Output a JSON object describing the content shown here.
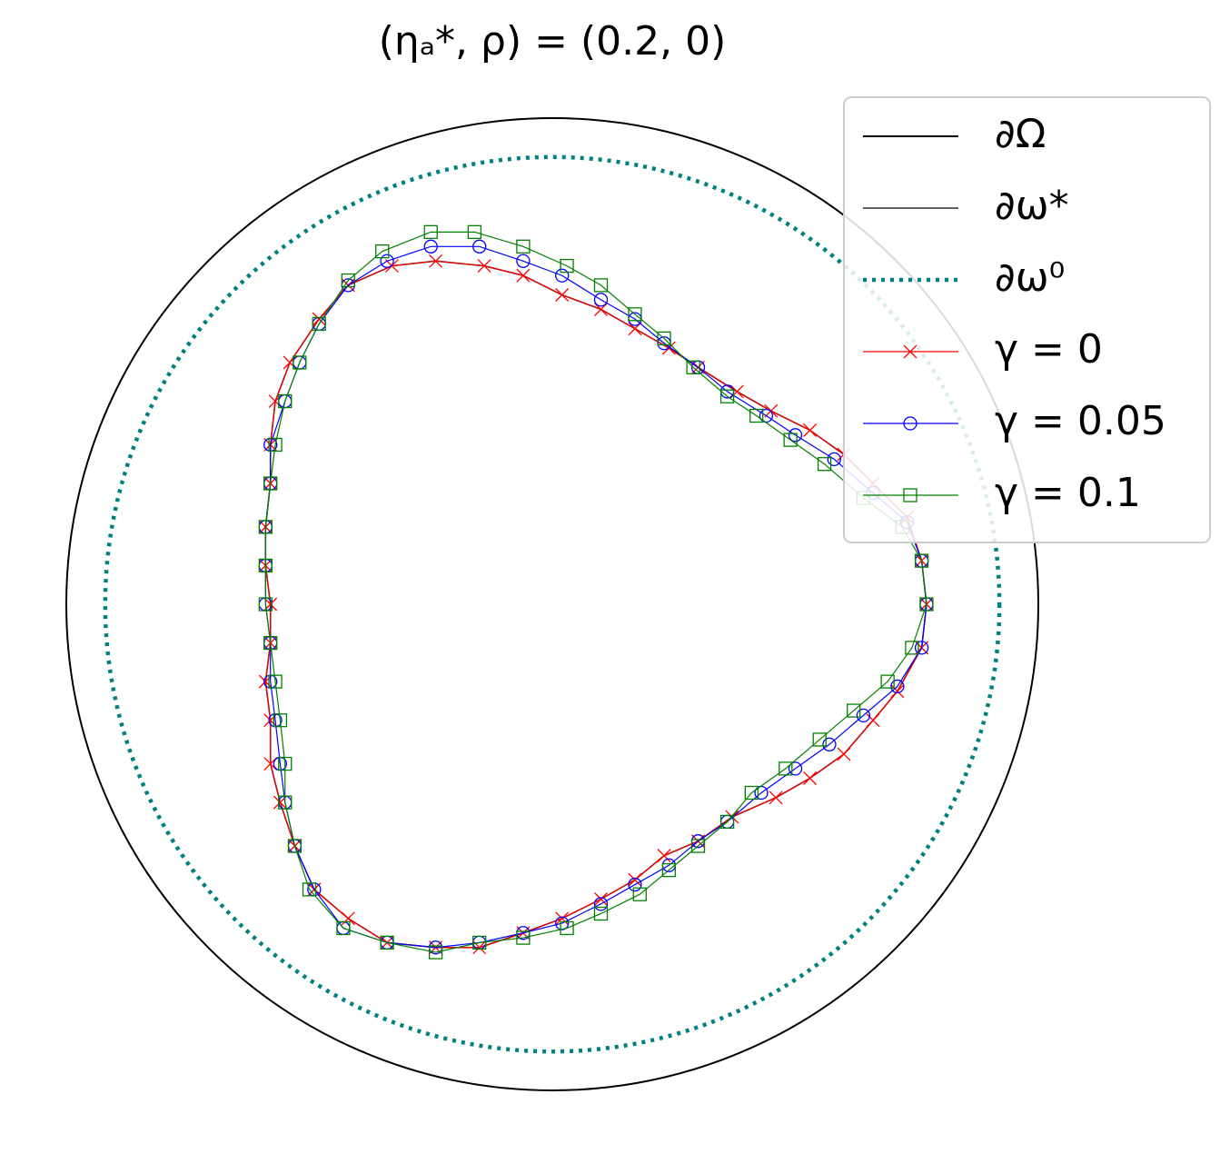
{
  "chart_data": {
    "type": "shape",
    "title": "(ηₐ*, ρ) = (0.2, 0)",
    "xlim": [
      -1,
      1
    ],
    "ylim": [
      -1,
      1
    ],
    "legend": "upper right",
    "series": [
      {
        "name": "∂Ω",
        "color": "#000000",
        "shape": "circle",
        "radius": 1,
        "linestyle": "solid"
      },
      {
        "name": "∂ω*",
        "color": "#000000",
        "shape": "curve",
        "linestyle": "thin",
        "x": [
          0.77,
          0.76,
          0.71,
          0.66,
          0.6,
          0.53,
          0.46,
          0.37,
          0.3,
          0.23,
          0.17,
          0.1,
          0.02,
          -0.06,
          -0.15,
          -0.24,
          -0.34,
          -0.42,
          -0.49,
          -0.53,
          -0.56,
          -0.58,
          -0.58,
          -0.59,
          -0.58,
          -0.58,
          -0.59,
          -0.59,
          -0.58,
          -0.58,
          -0.57,
          -0.54,
          -0.48,
          -0.42,
          -0.33,
          -0.24,
          -0.14,
          -0.06,
          0.02,
          0.1,
          0.17,
          0.24,
          0.3,
          0.38,
          0.45,
          0.53,
          0.6,
          0.66,
          0.73,
          0.76
        ],
        "y": [
          0,
          -0.09,
          -0.18,
          -0.24,
          -0.31,
          -0.36,
          -0.4,
          -0.44,
          -0.49,
          -0.52,
          -0.57,
          -0.61,
          -0.65,
          -0.68,
          -0.71,
          -0.71,
          -0.7,
          -0.65,
          -0.59,
          -0.5,
          -0.41,
          -0.33,
          -0.24,
          -0.16,
          -0.08,
          0,
          0.08,
          0.16,
          0.25,
          0.33,
          0.42,
          0.5,
          0.59,
          0.66,
          0.7,
          0.71,
          0.7,
          0.68,
          0.64,
          0.61,
          0.57,
          0.53,
          0.49,
          0.44,
          0.4,
          0.36,
          0.31,
          0.25,
          0.18,
          0.09
        ]
      },
      {
        "name": "∂ω⁰",
        "color": "#008080",
        "shape": "circle",
        "radius": 0.92,
        "linestyle": "dotted"
      },
      {
        "name": "γ = 0",
        "color": "#ff0000",
        "shape": "curve",
        "marker": "x",
        "x": [
          0.77,
          0.76,
          0.71,
          0.66,
          0.6,
          0.53,
          0.46,
          0.37,
          0.3,
          0.23,
          0.17,
          0.1,
          0.02,
          -0.06,
          -0.15,
          -0.24,
          -0.34,
          -0.42,
          -0.49,
          -0.53,
          -0.56,
          -0.58,
          -0.58,
          -0.59,
          -0.58,
          -0.58,
          -0.59,
          -0.59,
          -0.58,
          -0.58,
          -0.57,
          -0.54,
          -0.48,
          -0.42,
          -0.33,
          -0.24,
          -0.14,
          -0.06,
          0.02,
          0.1,
          0.17,
          0.24,
          0.3,
          0.38,
          0.45,
          0.53,
          0.6,
          0.66,
          0.73,
          0.76
        ],
        "y": [
          0,
          -0.09,
          -0.18,
          -0.24,
          -0.31,
          -0.36,
          -0.4,
          -0.44,
          -0.49,
          -0.52,
          -0.57,
          -0.61,
          -0.65,
          -0.68,
          -0.71,
          -0.71,
          -0.7,
          -0.65,
          -0.59,
          -0.5,
          -0.41,
          -0.33,
          -0.24,
          -0.16,
          -0.08,
          0,
          0.08,
          0.16,
          0.25,
          0.33,
          0.42,
          0.5,
          0.59,
          0.66,
          0.7,
          0.71,
          0.7,
          0.68,
          0.64,
          0.61,
          0.57,
          0.53,
          0.49,
          0.44,
          0.4,
          0.36,
          0.31,
          0.25,
          0.18,
          0.09
        ]
      },
      {
        "name": "γ = 0.05",
        "color": "#0000ff",
        "shape": "curve",
        "marker": "circle",
        "x": [
          0.77,
          0.76,
          0.71,
          0.64,
          0.57,
          0.5,
          0.43,
          0.36,
          0.3,
          0.24,
          0.17,
          0.1,
          0.02,
          -0.06,
          -0.15,
          -0.24,
          -0.34,
          -0.43,
          -0.49,
          -0.53,
          -0.55,
          -0.56,
          -0.57,
          -0.58,
          -0.58,
          -0.59,
          -0.59,
          -0.59,
          -0.58,
          -0.58,
          -0.55,
          -0.52,
          -0.48,
          -0.42,
          -0.34,
          -0.25,
          -0.15,
          -0.06,
          0.02,
          0.1,
          0.17,
          0.23,
          0.3,
          0.36,
          0.44,
          0.5,
          0.58,
          0.66,
          0.73,
          0.76
        ],
        "y": [
          0,
          -0.09,
          -0.17,
          -0.23,
          -0.29,
          -0.34,
          -0.39,
          -0.45,
          -0.49,
          -0.54,
          -0.58,
          -0.62,
          -0.66,
          -0.68,
          -0.7,
          -0.71,
          -0.7,
          -0.67,
          -0.59,
          -0.5,
          -0.41,
          -0.33,
          -0.24,
          -0.16,
          -0.08,
          0,
          0.08,
          0.16,
          0.25,
          0.33,
          0.42,
          0.5,
          0.58,
          0.66,
          0.71,
          0.74,
          0.74,
          0.71,
          0.68,
          0.63,
          0.59,
          0.54,
          0.49,
          0.44,
          0.39,
          0.35,
          0.3,
          0.23,
          0.17,
          0.09
        ]
      },
      {
        "name": "γ = 0.1",
        "color": "#008000",
        "shape": "curve",
        "marker": "square",
        "x": [
          0.77,
          0.74,
          0.69,
          0.62,
          0.55,
          0.48,
          0.41,
          0.36,
          0.3,
          0.24,
          0.18,
          0.1,
          0.03,
          -0.06,
          -0.15,
          -0.24,
          -0.34,
          -0.43,
          -0.5,
          -0.53,
          -0.55,
          -0.55,
          -0.56,
          -0.57,
          -0.58,
          -0.59,
          -0.59,
          -0.59,
          -0.58,
          -0.57,
          -0.55,
          -0.52,
          -0.48,
          -0.42,
          -0.35,
          -0.25,
          -0.16,
          -0.06,
          0.03,
          0.1,
          0.17,
          0.23,
          0.29,
          0.36,
          0.42,
          0.49,
          0.56,
          0.64,
          0.72,
          0.76
        ],
        "y": [
          0,
          -0.09,
          -0.16,
          -0.22,
          -0.28,
          -0.34,
          -0.39,
          -0.45,
          -0.5,
          -0.55,
          -0.6,
          -0.64,
          -0.67,
          -0.69,
          -0.7,
          -0.72,
          -0.7,
          -0.67,
          -0.59,
          -0.5,
          -0.41,
          -0.33,
          -0.24,
          -0.16,
          -0.08,
          0,
          0.08,
          0.16,
          0.25,
          0.33,
          0.42,
          0.5,
          0.58,
          0.67,
          0.73,
          0.77,
          0.77,
          0.74,
          0.7,
          0.66,
          0.6,
          0.55,
          0.49,
          0.43,
          0.39,
          0.34,
          0.29,
          0.22,
          0.16,
          0.09
        ]
      }
    ]
  }
}
